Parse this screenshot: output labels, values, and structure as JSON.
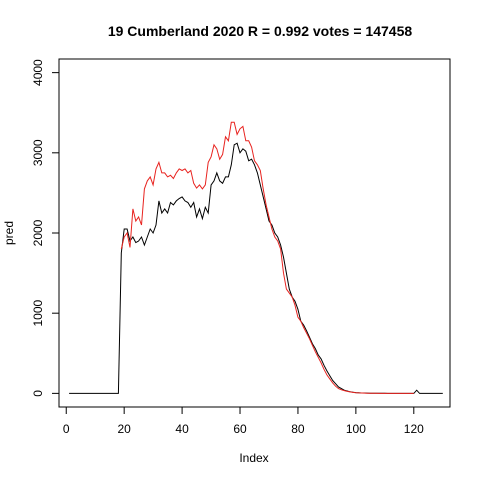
{
  "chart_data": {
    "type": "line",
    "title": "19 Cumberland 2020 R = 0.992 votes = 147458",
    "xlabel": "Index",
    "ylabel": "pred",
    "xlim": [
      -2.5,
      132.5
    ],
    "ylim": [
      -170,
      4170
    ],
    "xticks": [
      0,
      20,
      40,
      60,
      80,
      100,
      120
    ],
    "yticks": [
      0,
      1000,
      2000,
      3000,
      4000
    ],
    "grid": false,
    "legend": "none",
    "series": [
      {
        "color": "#000000",
        "x": [
          1,
          2,
          3,
          4,
          5,
          6,
          7,
          8,
          9,
          10,
          11,
          12,
          13,
          14,
          15,
          16,
          17,
          18,
          19,
          20,
          21,
          22,
          23,
          24,
          25,
          26,
          27,
          28,
          29,
          30,
          31,
          32,
          33,
          34,
          35,
          36,
          37,
          38,
          39,
          40,
          41,
          42,
          43,
          44,
          45,
          46,
          47,
          48,
          49,
          50,
          51,
          52,
          53,
          54,
          55,
          56,
          57,
          58,
          59,
          60,
          61,
          62,
          63,
          64,
          65,
          66,
          67,
          68,
          69,
          70,
          71,
          72,
          73,
          74,
          75,
          76,
          77,
          78,
          79,
          80,
          81,
          82,
          83,
          84,
          85,
          86,
          87,
          88,
          89,
          90,
          91,
          92,
          93,
          94,
          95,
          96,
          97,
          98,
          99,
          100,
          101,
          102,
          103,
          104,
          105,
          106,
          107,
          108,
          109,
          110,
          111,
          112,
          113,
          114,
          115,
          116,
          117,
          118,
          119,
          120,
          121,
          122,
          123,
          124,
          125,
          126,
          127,
          128,
          129,
          130
        ],
        "y": [
          0,
          0,
          0,
          0,
          0,
          0,
          0,
          0,
          0,
          0,
          0,
          0,
          0,
          0,
          0,
          0,
          0,
          0,
          1750,
          2050,
          2050,
          1900,
          1950,
          1880,
          1900,
          1950,
          1850,
          1950,
          2050,
          2000,
          2100,
          2400,
          2250,
          2300,
          2250,
          2380,
          2350,
          2400,
          2430,
          2450,
          2400,
          2380,
          2320,
          2380,
          2200,
          2300,
          2180,
          2320,
          2250,
          2600,
          2650,
          2750,
          2650,
          2620,
          2700,
          2700,
          2850,
          3100,
          3120,
          3000,
          3050,
          3020,
          2900,
          2920,
          2850,
          2750,
          2600,
          2450,
          2300,
          2150,
          2100,
          2000,
          1950,
          1850,
          1700,
          1500,
          1300,
          1200,
          1150,
          1050,
          900,
          850,
          780,
          700,
          620,
          560,
          480,
          430,
          350,
          280,
          220,
          160,
          120,
          80,
          60,
          40,
          30,
          20,
          15,
          10,
          8,
          5,
          4,
          3,
          2,
          2,
          1,
          1,
          1,
          1,
          0,
          0,
          0,
          0,
          0,
          0,
          0,
          0,
          0,
          0,
          40,
          0,
          0,
          0,
          0,
          0,
          0,
          0,
          0,
          0
        ]
      },
      {
        "color": "#e8231f",
        "x": [
          19,
          20,
          21,
          22,
          23,
          24,
          25,
          26,
          27,
          28,
          29,
          30,
          31,
          32,
          33,
          34,
          35,
          36,
          37,
          38,
          39,
          40,
          41,
          42,
          43,
          44,
          45,
          46,
          47,
          48,
          49,
          50,
          51,
          52,
          53,
          54,
          55,
          56,
          57,
          58,
          59,
          60,
          61,
          62,
          63,
          64,
          65,
          66,
          67,
          68,
          69,
          70,
          71,
          72,
          73,
          74,
          75,
          76,
          77,
          78,
          79,
          80,
          81,
          82,
          83,
          84,
          85,
          86,
          87,
          88,
          89,
          90,
          91,
          92,
          93,
          94,
          95,
          96,
          97,
          98,
          99,
          100,
          101,
          102,
          103,
          104,
          105,
          106,
          107,
          108,
          109,
          110,
          111,
          112,
          113,
          114,
          115,
          116,
          117,
          118,
          119,
          120
        ],
        "y": [
          1800,
          1950,
          2000,
          1820,
          2300,
          2150,
          2200,
          2100,
          2550,
          2650,
          2700,
          2600,
          2800,
          2880,
          2750,
          2750,
          2700,
          2720,
          2680,
          2750,
          2800,
          2780,
          2800,
          2750,
          2780,
          2620,
          2560,
          2600,
          2550,
          2600,
          2880,
          2950,
          3100,
          3050,
          2920,
          2980,
          3200,
          3150,
          3380,
          3380,
          3230,
          3300,
          3330,
          3150,
          3150,
          3070,
          2900,
          2850,
          2780,
          2550,
          2350,
          2200,
          2050,
          1950,
          1900,
          1800,
          1500,
          1300,
          1250,
          1200,
          1100,
          950,
          900,
          820,
          750,
          680,
          600,
          520,
          450,
          380,
          300,
          230,
          180,
          130,
          90,
          60,
          45,
          35,
          25,
          18,
          12,
          8,
          6,
          4,
          3,
          2,
          1,
          1,
          1,
          0,
          0,
          0,
          0,
          0,
          0,
          0,
          0,
          0,
          0,
          0,
          0,
          0
        ]
      }
    ]
  }
}
